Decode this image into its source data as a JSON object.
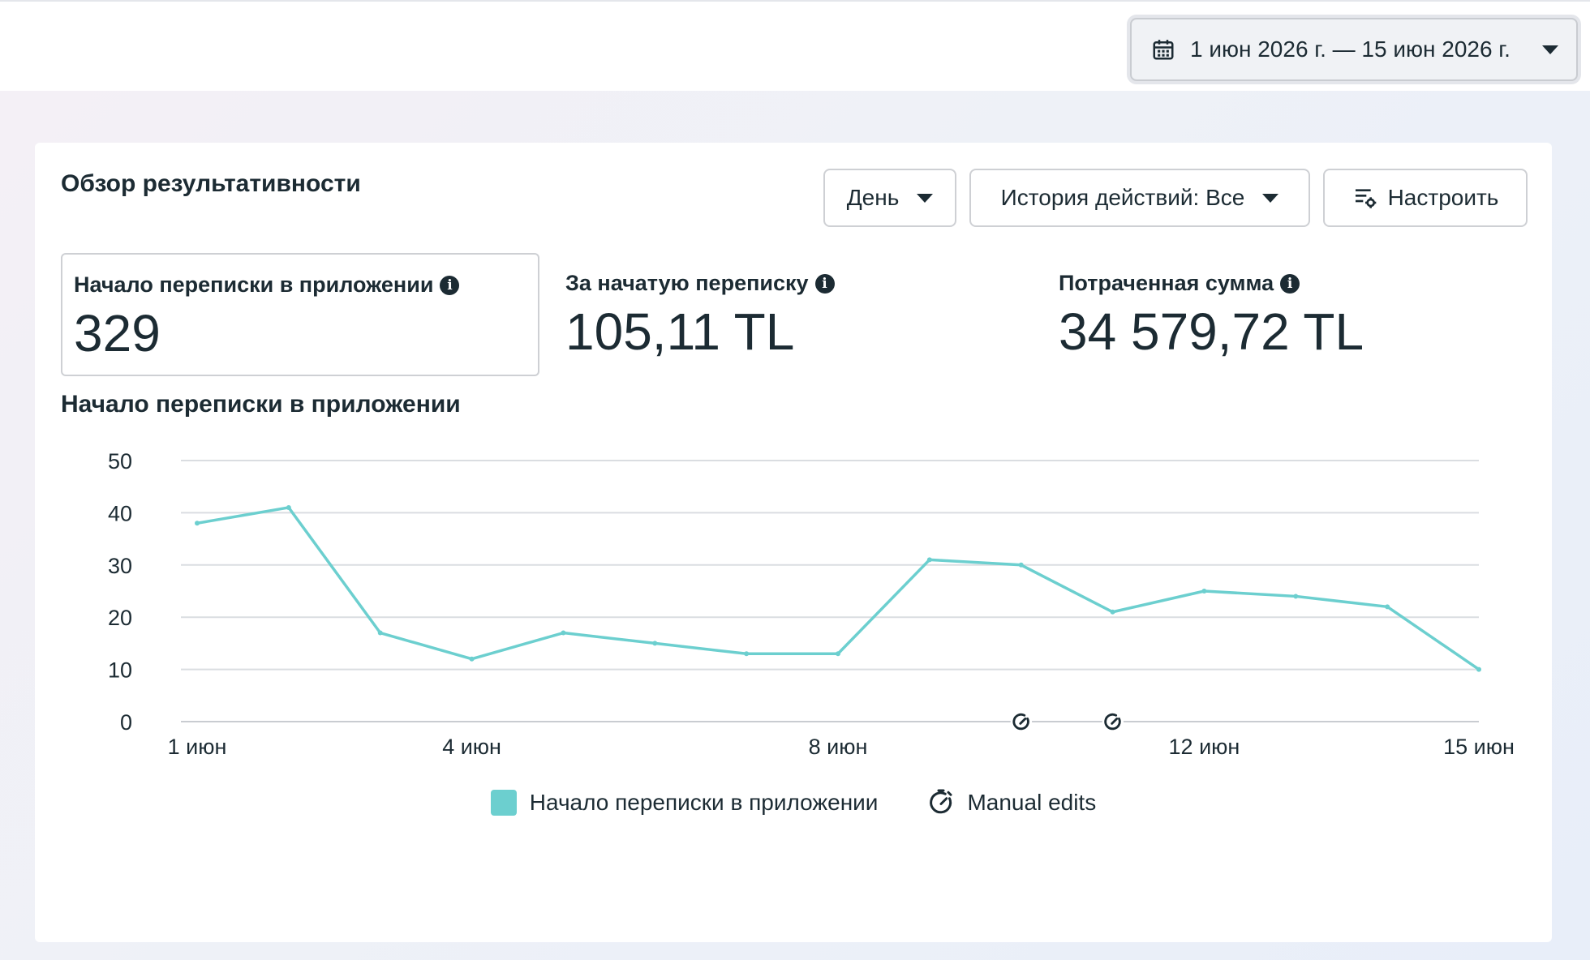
{
  "header": {
    "date_range": "1 июн 2026 г. — 15 июн 2026 г."
  },
  "card": {
    "title": "Обзор результативности",
    "buttons": {
      "day": "День",
      "history": "История действий: Все",
      "configure": "Настроить"
    },
    "metrics": [
      {
        "label": "Начало переписки в приложении",
        "value": "329",
        "selected": true
      },
      {
        "label": "За начатую переписку",
        "value": "105,11 TL",
        "selected": false
      },
      {
        "label": "Потраченная сумма",
        "value": "34 579,72 TL",
        "selected": false
      }
    ],
    "chart_title": "Начало переписки в приложении"
  },
  "colors": {
    "series": "#6ccfcf",
    "text": "#1c2b33",
    "grid": "#dadde1"
  },
  "chart_data": {
    "type": "line",
    "x": [
      "1 июн",
      "2 июн",
      "3 июн",
      "4 июн",
      "5 июн",
      "6 июн",
      "7 июн",
      "8 июн",
      "9 июн",
      "10 июн",
      "11 июн",
      "12 июн",
      "13 июн",
      "14 июн",
      "15 июн"
    ],
    "series": [
      {
        "name": "Начало переписки в приложении",
        "values": [
          38,
          41,
          17,
          12,
          17,
          15,
          13,
          13,
          31,
          30,
          21,
          25,
          24,
          22,
          10
        ]
      }
    ],
    "yticks": [
      "0",
      "10",
      "20",
      "30",
      "40",
      "50"
    ],
    "ylim": [
      0,
      50
    ],
    "xtick_labels": [
      {
        "index": 0,
        "label": "1 июн"
      },
      {
        "index": 3,
        "label": "4 июн"
      },
      {
        "index": 7,
        "label": "8 июн"
      },
      {
        "index": 11,
        "label": "12 июн"
      },
      {
        "index": 14,
        "label": "15 июн"
      }
    ],
    "manual_edit_markers": [
      9,
      10
    ],
    "legend": {
      "series_label": "Начало переписки в приложении",
      "manual_edits_label": "Manual edits"
    },
    "grid": true
  }
}
